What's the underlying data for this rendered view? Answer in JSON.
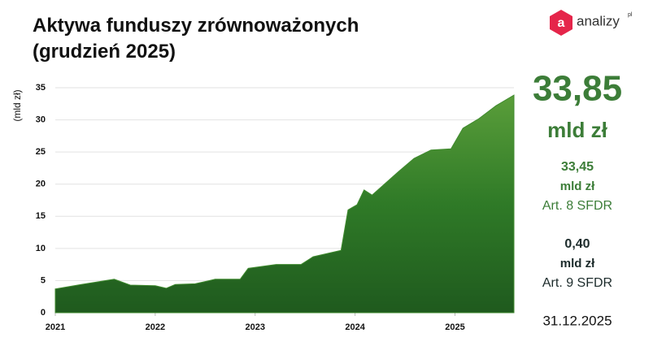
{
  "chart_data": {
    "type": "area",
    "title": "Aktywa funduszy zrównoważonych (grudzień 2025)",
    "ylabel": "(mld zł)",
    "x": [
      2021.0,
      2021.26,
      2021.59,
      2021.75,
      2022.0,
      2022.11,
      2022.2,
      2022.4,
      2022.6,
      2022.85,
      2022.93,
      2023.21,
      2023.46,
      2023.58,
      2023.86,
      2023.93,
      2024.02,
      2024.09,
      2024.17,
      2024.43,
      2024.59,
      2024.76,
      2024.96,
      2025.08,
      2025.24,
      2025.41,
      2025.59
    ],
    "values": [
      3.7,
      4.4,
      5.2,
      4.3,
      4.2,
      3.8,
      4.4,
      4.5,
      5.2,
      5.2,
      6.9,
      7.5,
      7.5,
      8.7,
      9.7,
      16.0,
      16.8,
      19.1,
      18.3,
      21.9,
      24.0,
      25.3,
      25.5,
      28.7,
      30.2,
      32.2,
      33.85
    ],
    "color": "#3f8a2e",
    "xlim": [
      2021,
      2025.59
    ],
    "xticks": [
      2021,
      2022,
      2023,
      2024,
      2025
    ],
    "ylim": [
      0,
      35
    ],
    "yticks": [
      0,
      5,
      10,
      15,
      20,
      25,
      30,
      35
    ],
    "grid": true
  },
  "logo": {
    "icon": "a",
    "name": "analizy",
    "suffix": "pl"
  },
  "summary": {
    "total": {
      "value": "33,85",
      "unit": "mld zł"
    },
    "items": [
      {
        "value": "33,45",
        "unit": "mld zł",
        "label": "Art. 8 SFDR"
      },
      {
        "value": "0,40",
        "unit": "mld zł",
        "label": "Art. 9 SFDR"
      }
    ],
    "date": "31.12.2025"
  }
}
